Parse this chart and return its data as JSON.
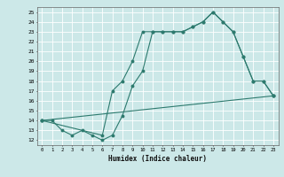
{
  "xlabel": "Humidex (Indice chaleur)",
  "bg_color": "#cce8e8",
  "line_color": "#2d7a6e",
  "grid_color": "#b0d8d8",
  "xlim": [
    -0.5,
    23.5
  ],
  "ylim": [
    11.5,
    25.5
  ],
  "xticks": [
    0,
    1,
    2,
    3,
    4,
    5,
    6,
    7,
    8,
    9,
    10,
    11,
    12,
    13,
    14,
    15,
    16,
    17,
    18,
    19,
    20,
    21,
    22,
    23
  ],
  "yticks": [
    12,
    13,
    14,
    15,
    16,
    17,
    18,
    19,
    20,
    21,
    22,
    23,
    24,
    25
  ],
  "line1_x": [
    0,
    1,
    2,
    3,
    4,
    5,
    6,
    7,
    8,
    9,
    10,
    11,
    12,
    13,
    14,
    15,
    16,
    17,
    18,
    19,
    20,
    21,
    22,
    23
  ],
  "line1_y": [
    14,
    14,
    13,
    12.5,
    13,
    12.5,
    12,
    12.5,
    14.5,
    17.5,
    19,
    23,
    23,
    23,
    23,
    23.5,
    24,
    25,
    24,
    23,
    20.5,
    18,
    18,
    16.5
  ],
  "line2_x": [
    0,
    6,
    7,
    8,
    9,
    10,
    11,
    12,
    13,
    14,
    15,
    16,
    17,
    18,
    19,
    20,
    21,
    22,
    23
  ],
  "line2_y": [
    14,
    12.5,
    17,
    18,
    20,
    23,
    23,
    23,
    23,
    23,
    23.5,
    24,
    25,
    24,
    23,
    20.5,
    18,
    18,
    16.5
  ],
  "line3_x": [
    0,
    23
  ],
  "line3_y": [
    14,
    16.5
  ]
}
